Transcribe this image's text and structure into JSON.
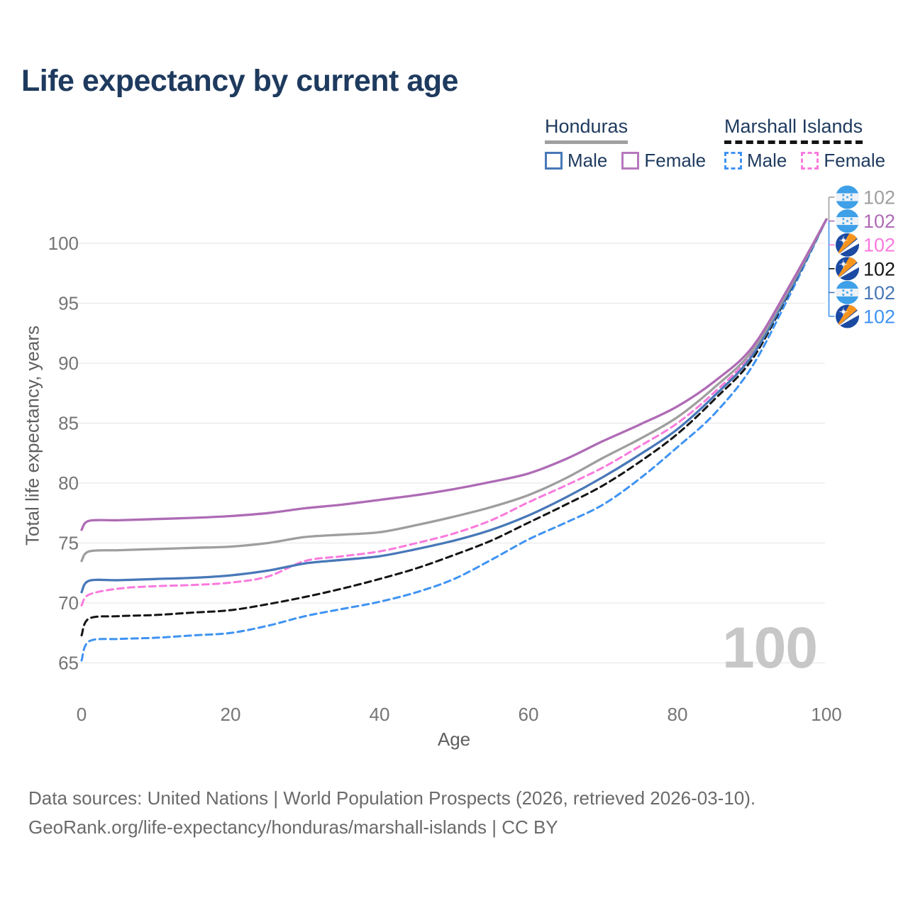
{
  "title": "Life expectancy by current age",
  "watermark": "100",
  "legend": {
    "groups": [
      {
        "name": "Honduras",
        "line_style": "solid",
        "underline_color": "#a0a0a0",
        "items": [
          {
            "label": "Male",
            "color": "#4878b8",
            "dashed": false
          },
          {
            "label": "Female",
            "color": "#b678bc",
            "dashed": false
          }
        ]
      },
      {
        "name": "Marshall Islands",
        "line_style": "dashed",
        "underline_color": "#141414",
        "items": [
          {
            "label": "Male",
            "color": "#3f93f2",
            "dashed": true
          },
          {
            "label": "Female",
            "color": "#f97add",
            "dashed": true
          }
        ]
      }
    ]
  },
  "y_axis": {
    "title": "Total life expectancy, years",
    "ticks": [
      65,
      70,
      75,
      80,
      85,
      90,
      95,
      100
    ]
  },
  "x_axis": {
    "title": "Age",
    "ticks": [
      0,
      20,
      40,
      60,
      80,
      100
    ]
  },
  "end_labels": [
    {
      "flag": "honduras",
      "text": "102",
      "color": "#9e9e9e"
    },
    {
      "flag": "honduras",
      "text": "102",
      "color": "#ae6bb5"
    },
    {
      "flag": "marshall-islands",
      "text": "102",
      "color": "#f97add"
    },
    {
      "flag": "marshall-islands",
      "text": "102",
      "color": "#141414"
    },
    {
      "flag": "honduras",
      "text": "102",
      "color": "#4878b8"
    },
    {
      "flag": "marshall-islands",
      "text": "102",
      "color": "#3f93f2"
    }
  ],
  "footer": {
    "line1": "Data sources: United Nations | World Population Prospects (2026, retrieved 2026-03-10).",
    "line2": "GeoRank.org/life-expectancy/honduras/marshall-islands | CC BY"
  },
  "chart_data": {
    "type": "line",
    "title": "Life expectancy by current age",
    "xlabel": "Age",
    "ylabel": "Total life expectancy, years",
    "xlim": [
      0,
      100
    ],
    "ylim": [
      63,
      103
    ],
    "x_ticks": [
      0,
      20,
      40,
      60,
      80,
      100
    ],
    "y_ticks": [
      65,
      70,
      75,
      80,
      85,
      90,
      95,
      100
    ],
    "grid": "horizontal",
    "legend_position": "top-right",
    "ages": [
      0,
      1,
      5,
      10,
      15,
      20,
      25,
      30,
      35,
      40,
      45,
      50,
      55,
      60,
      65,
      70,
      75,
      80,
      85,
      90,
      95,
      100
    ],
    "series": [
      {
        "name": "Marshall Islands Male",
        "country": "Marshall Islands",
        "sex": "male",
        "color": "#3f93f2",
        "dashed": true,
        "end_value": 102,
        "values": [
          65.2,
          66.8,
          67.0,
          67.1,
          67.3,
          67.5,
          68.1,
          68.9,
          69.5,
          70.1,
          70.9,
          72.0,
          73.6,
          75.3,
          76.7,
          78.2,
          80.4,
          83.0,
          85.8,
          89.7,
          95.6,
          102
        ]
      },
      {
        "name": "Marshall Islands",
        "country": "Marshall Islands",
        "sex": "both",
        "color": "#141414",
        "dashed": true,
        "end_value": 102,
        "values": [
          67.3,
          68.7,
          68.9,
          69.0,
          69.2,
          69.4,
          69.9,
          70.5,
          71.2,
          72.0,
          72.9,
          74.0,
          75.2,
          76.7,
          78.2,
          79.8,
          81.8,
          84.1,
          87.0,
          90.3,
          95.9,
          102
        ]
      },
      {
        "name": "Marshall Islands Female",
        "country": "Marshall Islands",
        "sex": "female",
        "color": "#f97add",
        "dashed": true,
        "end_value": 102,
        "values": [
          69.8,
          70.7,
          71.2,
          71.4,
          71.5,
          71.7,
          72.2,
          73.5,
          73.9,
          74.3,
          75.0,
          75.8,
          76.9,
          78.4,
          79.8,
          81.3,
          83.1,
          85.0,
          87.6,
          90.8,
          96.1,
          102
        ]
      },
      {
        "name": "Honduras Male",
        "country": "Honduras",
        "sex": "male",
        "color": "#4878b8",
        "dashed": false,
        "end_value": 102,
        "values": [
          70.9,
          71.85,
          71.9,
          72.0,
          72.1,
          72.3,
          72.7,
          73.3,
          73.6,
          73.9,
          74.5,
          75.2,
          76.1,
          77.3,
          78.8,
          80.5,
          82.4,
          84.5,
          87.3,
          90.6,
          96.0,
          102
        ]
      },
      {
        "name": "Honduras",
        "country": "Honduras",
        "sex": "both",
        "color": "#9e9e9e",
        "dashed": false,
        "end_value": 102,
        "values": [
          73.5,
          74.3,
          74.4,
          74.5,
          74.6,
          74.7,
          75.0,
          75.5,
          75.7,
          75.9,
          76.5,
          77.2,
          78.0,
          79.0,
          80.4,
          82.1,
          83.7,
          85.5,
          88.0,
          91.0,
          96.2,
          102
        ]
      },
      {
        "name": "Honduras Female",
        "country": "Honduras",
        "sex": "female",
        "color": "#ae6bb5",
        "dashed": false,
        "end_value": 102,
        "values": [
          76.1,
          76.85,
          76.9,
          77.0,
          77.1,
          77.25,
          77.5,
          77.9,
          78.2,
          78.6,
          79.0,
          79.5,
          80.1,
          80.8,
          82.0,
          83.5,
          84.9,
          86.4,
          88.5,
          91.3,
          96.4,
          102
        ]
      }
    ]
  }
}
